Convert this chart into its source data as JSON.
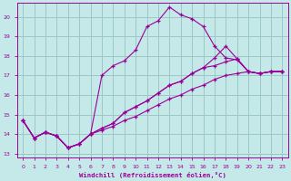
{
  "xlabel": "Windchill (Refroidissement éolien,°C)",
  "xlim": [
    -0.5,
    23.5
  ],
  "ylim": [
    12.8,
    20.7
  ],
  "yticks": [
    13,
    14,
    15,
    16,
    17,
    18,
    19,
    20
  ],
  "xticks": [
    0,
    1,
    2,
    3,
    4,
    5,
    6,
    7,
    8,
    9,
    10,
    11,
    12,
    13,
    14,
    15,
    16,
    17,
    18,
    19,
    20,
    21,
    22,
    23
  ],
  "bg_color": "#c5e8e8",
  "line_color": "#990099",
  "grid_color": "#9dc8c8",
  "line1_x": [
    0,
    1,
    2,
    3,
    4,
    5,
    6,
    7,
    8,
    9,
    10,
    11,
    12,
    13,
    14,
    15,
    16,
    17,
    18,
    19,
    20,
    21,
    22,
    23
  ],
  "line1_y": [
    14.7,
    13.8,
    14.1,
    13.9,
    13.3,
    13.5,
    14.0,
    17.0,
    17.5,
    17.75,
    18.3,
    19.5,
    19.8,
    20.5,
    20.1,
    19.9,
    19.5,
    18.5,
    17.9,
    17.8,
    17.2,
    17.1,
    17.2,
    17.2
  ],
  "line2_x": [
    0,
    1,
    2,
    3,
    4,
    5,
    6,
    7,
    8,
    9,
    10,
    11,
    12,
    13,
    14,
    15,
    16,
    17,
    18,
    19,
    20,
    21,
    22,
    23
  ],
  "line2_y": [
    14.7,
    13.8,
    14.1,
    13.9,
    13.3,
    13.5,
    14.0,
    14.3,
    14.55,
    15.1,
    15.4,
    15.7,
    16.1,
    16.5,
    16.7,
    17.1,
    17.4,
    17.9,
    18.5,
    17.85,
    17.2,
    17.1,
    17.2,
    17.2
  ],
  "line3_x": [
    0,
    1,
    2,
    3,
    4,
    5,
    6,
    7,
    8,
    9,
    10,
    11,
    12,
    13,
    14,
    15,
    16,
    17,
    18,
    19,
    20,
    21,
    22,
    23
  ],
  "line3_y": [
    14.7,
    13.8,
    14.1,
    13.9,
    13.3,
    13.5,
    14.0,
    14.3,
    14.55,
    15.1,
    15.4,
    15.7,
    16.1,
    16.5,
    16.7,
    17.1,
    17.4,
    17.5,
    17.7,
    17.85,
    17.2,
    17.1,
    17.2,
    17.2
  ],
  "line4_x": [
    0,
    1,
    2,
    3,
    4,
    5,
    6,
    7,
    8,
    9,
    10,
    11,
    12,
    13,
    14,
    15,
    16,
    17,
    18,
    19,
    20,
    21,
    22,
    23
  ],
  "line4_y": [
    14.7,
    13.8,
    14.1,
    13.9,
    13.3,
    13.5,
    14.0,
    14.2,
    14.4,
    14.7,
    14.9,
    15.2,
    15.5,
    15.8,
    16.0,
    16.3,
    16.5,
    16.8,
    17.0,
    17.1,
    17.2,
    17.1,
    17.2,
    17.2
  ]
}
